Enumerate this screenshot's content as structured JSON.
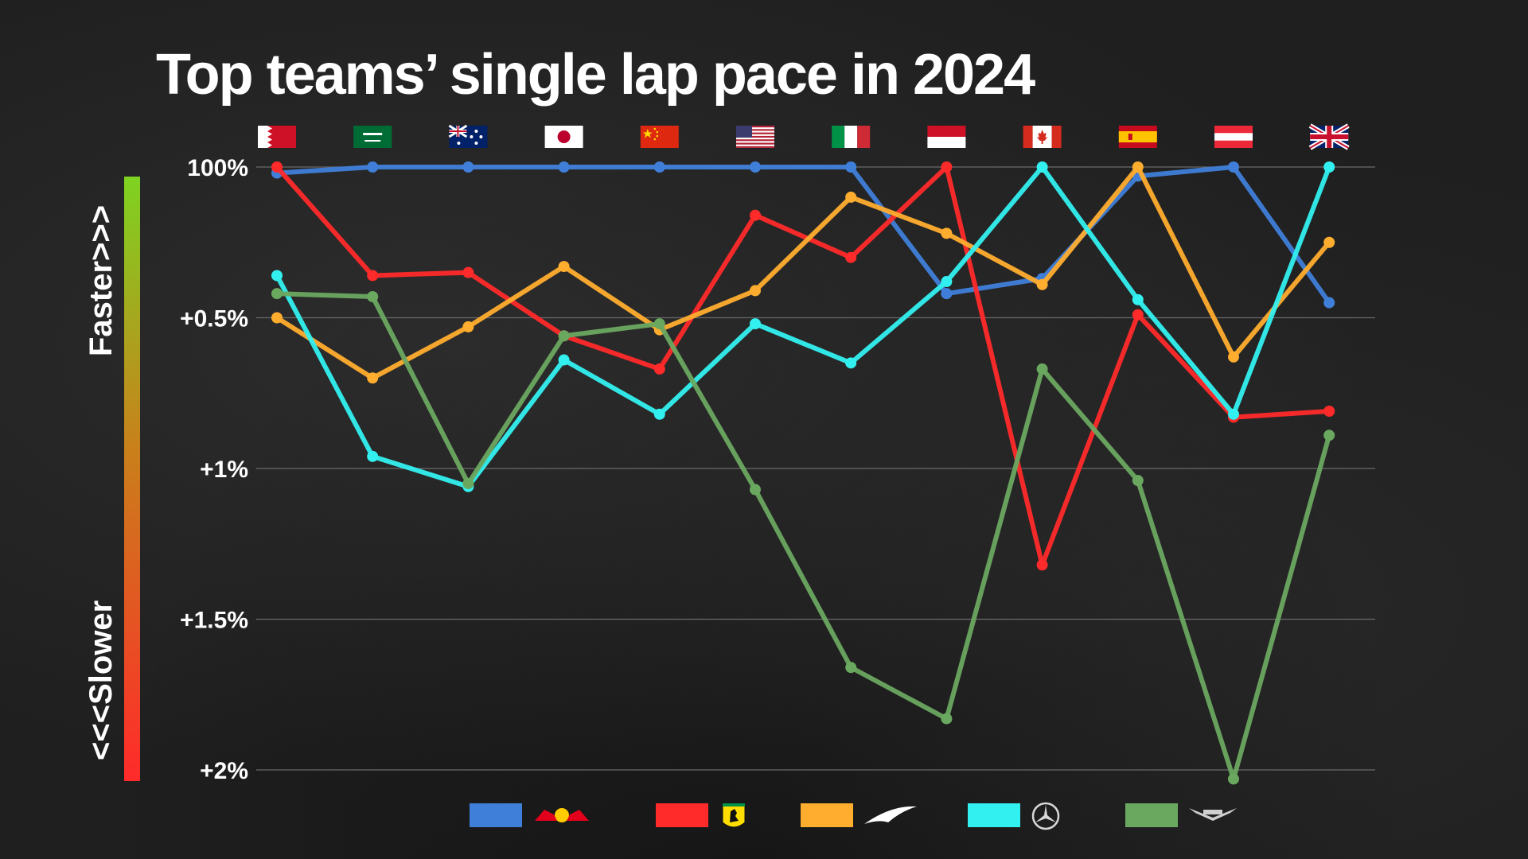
{
  "chart_data": {
    "type": "line",
    "title": "Top teams’ single lap pace in 2024",
    "y_axis": {
      "ticks": [
        "100%",
        "+0.5%",
        "+1%",
        "+1.5%",
        "+2%"
      ],
      "tick_values": [
        0,
        0.5,
        1.0,
        1.5,
        2.0
      ],
      "range": [
        0,
        2.0
      ],
      "direction": "down",
      "grid": true
    },
    "direction_bar": {
      "top_label": "Faster>>>",
      "bottom_label": "<<<Slower",
      "top_color": "#7ed321",
      "bottom_color": "#ff2a2a"
    },
    "categories": [
      "Bahrain",
      "Saudi Arabia",
      "Australia",
      "Japan",
      "China",
      "USA",
      "Italy",
      "Monaco",
      "Canada",
      "Spain",
      "Austria",
      "Great Britain"
    ],
    "category_flags": [
      "bahrain-flag",
      "saudi-arabia-flag",
      "australia-flag",
      "japan-flag",
      "china-flag",
      "usa-flag",
      "italy-flag",
      "monaco-flag",
      "canada-flag",
      "spain-flag",
      "austria-flag",
      "uk-flag"
    ],
    "series": [
      {
        "team_logo": "red-bull-logo",
        "color": "#3f7fd9",
        "values": [
          0.02,
          0.0,
          0.0,
          0.0,
          0.0,
          0.0,
          0.0,
          0.42,
          0.37,
          0.03,
          0.0,
          0.45
        ]
      },
      {
        "team_logo": "ferrari-logo",
        "color": "#ff2a2a",
        "values": [
          0.0,
          0.36,
          0.35,
          0.56,
          0.67,
          0.16,
          0.3,
          0.0,
          1.32,
          0.49,
          0.83,
          0.81
        ]
      },
      {
        "team_logo": "mclaren-logo",
        "color": "#ffad2e",
        "values": [
          0.5,
          0.7,
          0.53,
          0.33,
          0.54,
          0.41,
          0.1,
          0.22,
          0.39,
          0.0,
          0.63,
          0.25
        ]
      },
      {
        "team_logo": "mercedes-logo",
        "color": "#33f0f0",
        "values": [
          0.36,
          0.96,
          1.06,
          0.64,
          0.82,
          0.52,
          0.65,
          0.38,
          0.0,
          0.44,
          0.82,
          0.0
        ]
      },
      {
        "team_logo": "aston-martin-logo",
        "color": "#6aa860",
        "values": [
          0.42,
          0.43,
          1.05,
          0.56,
          0.52,
          1.07,
          1.66,
          1.83,
          0.67,
          1.04,
          2.03,
          0.89
        ]
      }
    ],
    "legend": {
      "placement": "bottom",
      "entries": [
        "red-bull-logo",
        "ferrari-logo",
        "mclaren-logo",
        "mercedes-logo",
        "aston-martin-logo"
      ]
    },
    "legend_logo_text": {
      "mclaren": "",
      "aston_martin": ""
    }
  }
}
